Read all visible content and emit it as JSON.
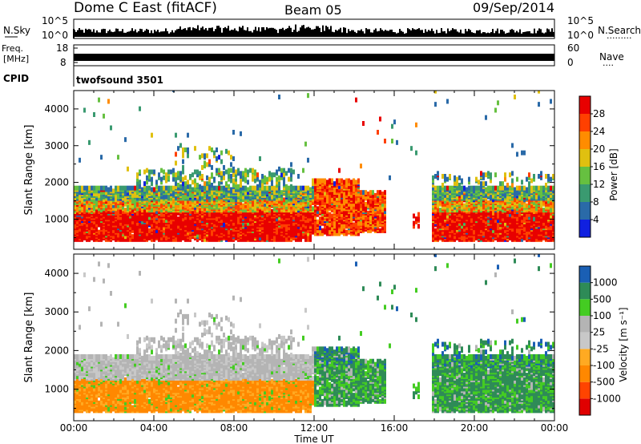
{
  "header": {
    "station": "Dome C East (fitACF)",
    "beam": "Beam 05",
    "date": "09/Sep/2014"
  },
  "noise_panel": {
    "left_label": "N.Sky",
    "right_label": "N.Search",
    "right_dots": ".........",
    "ytick_top": "10^5",
    "ytick_bottom": "10^0"
  },
  "freq_panel": {
    "left_label_1": "Freq.",
    "left_label_2": "[MHz]",
    "right_label": "Nave",
    "right_dots": "....",
    "left_ticks": [
      "18",
      "8"
    ],
    "right_ticks": [
      "60",
      "0"
    ]
  },
  "cpid_panel": {
    "label": "CPID",
    "value": "twofsound 3501"
  },
  "time_axis": {
    "label": "Time UT",
    "ticks": [
      "00:00",
      "04:00",
      "08:00",
      "12:00",
      "16:00",
      "20:00",
      "00:00"
    ]
  },
  "range_axis": {
    "label": "Slant Range [km]",
    "ticks": [
      "1000",
      "2000",
      "3000",
      "4000"
    ],
    "range": [
      180,
      4500
    ]
  },
  "colors": {
    "velocity_colors": [
      "#e00000",
      "#ff4400",
      "#ff8800",
      "#ffaa22",
      "#c8c8c8",
      "#b4b4b4",
      "#44cc22",
      "#2e8b57",
      "#1a5fb4",
      "#1030c0"
    ]
  },
  "chart_data": [
    {
      "type": "heatmap",
      "name": "power",
      "colorbar_label": "Power [dB]",
      "colorbar_ticks": [
        "4",
        "8",
        "12",
        "16",
        "20",
        "24",
        "28"
      ],
      "colorbar_range": [
        0,
        32
      ],
      "colors": [
        "#1020e0",
        "#2a6aa8",
        "#3a9a70",
        "#66c040",
        "#e0c010",
        "#ff8c00",
        "#ff4000",
        "#e80000"
      ],
      "x_range_hours": [
        0,
        24
      ],
      "y_range_km": [
        180,
        4500
      ],
      "regions": [
        {
          "t_start": 0.0,
          "t_end": 11.8,
          "r_min": 350,
          "r_max": 1800,
          "level": "mixed"
        },
        {
          "t_start": 12.0,
          "t_end": 14.2,
          "r_min": 500,
          "r_max": 2000,
          "level": "high"
        },
        {
          "t_start": 14.4,
          "t_end": 15.6,
          "r_min": 600,
          "r_max": 1700,
          "level": "high"
        },
        {
          "t_start": 17.8,
          "t_end": 24.0,
          "r_min": 350,
          "r_max": 1800,
          "level": "mixed"
        }
      ]
    },
    {
      "type": "heatmap",
      "name": "velocity",
      "colorbar_label": "Velocity [m s⁻¹]",
      "colorbar_ticks": [
        "1000",
        "500",
        "100",
        "25",
        "-25",
        "-100",
        "-500",
        "-1000"
      ],
      "x_range_hours": [
        0,
        24
      ],
      "y_range_km": [
        180,
        4500
      ],
      "regions": [
        {
          "t_start": 0.0,
          "t_end": 11.8,
          "r_min": 400,
          "r_max": 1200,
          "level": "negative"
        },
        {
          "t_start": 0.0,
          "t_end": 12.0,
          "r_min": 1200,
          "r_max": 1800,
          "level": "near-zero"
        },
        {
          "t_start": 12.0,
          "t_end": 15.6,
          "r_min": 500,
          "r_max": 1900,
          "level": "positive"
        },
        {
          "t_start": 17.8,
          "t_end": 24.0,
          "r_min": 350,
          "r_max": 1800,
          "level": "positive"
        }
      ]
    }
  ]
}
